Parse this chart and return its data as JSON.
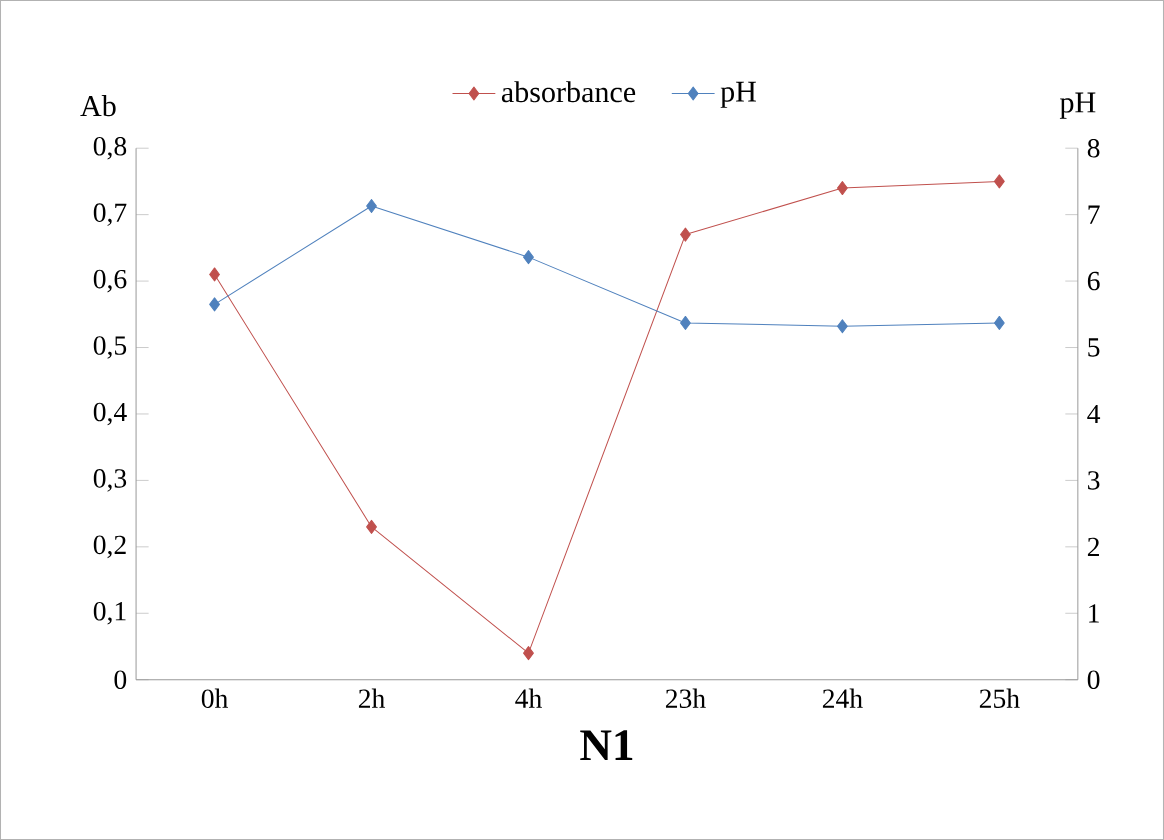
{
  "chart_data": {
    "type": "line",
    "xlabel": "N1",
    "ylabel": "Ab",
    "y2label": "pH",
    "categories": [
      "0h",
      "2h",
      "4h",
      "23h",
      "24h",
      "25h"
    ],
    "series": [
      {
        "name": "absorbance",
        "color": "#c0504d",
        "values": [
          0.61,
          0.23,
          0.04,
          0.67,
          0.74,
          0.75
        ]
      },
      {
        "name": "pH",
        "color": "#4f81bd",
        "axis": "y2",
        "values": [
          5.65,
          7.13,
          6.36,
          5.37,
          5.32,
          5.37
        ]
      }
    ],
    "ylim": [
      0,
      0.8
    ],
    "yticks": [
      {
        "value": 0,
        "label": "0"
      },
      {
        "value": 0.1,
        "label": "0,1"
      },
      {
        "value": 0.2,
        "label": "0,2"
      },
      {
        "value": 0.3,
        "label": "0,3"
      },
      {
        "value": 0.4,
        "label": "0,4"
      },
      {
        "value": 0.5,
        "label": "0,5"
      },
      {
        "value": 0.6,
        "label": "0,6"
      },
      {
        "value": 0.7,
        "label": "0,7"
      },
      {
        "value": 0.8,
        "label": "0,8"
      }
    ],
    "y2lim": [
      0,
      8
    ],
    "y2ticks": [
      0,
      1,
      2,
      3,
      4,
      5,
      6,
      7,
      8
    ],
    "grid": false,
    "legend": "top",
    "marker": "diamond",
    "line_style": "solid"
  }
}
